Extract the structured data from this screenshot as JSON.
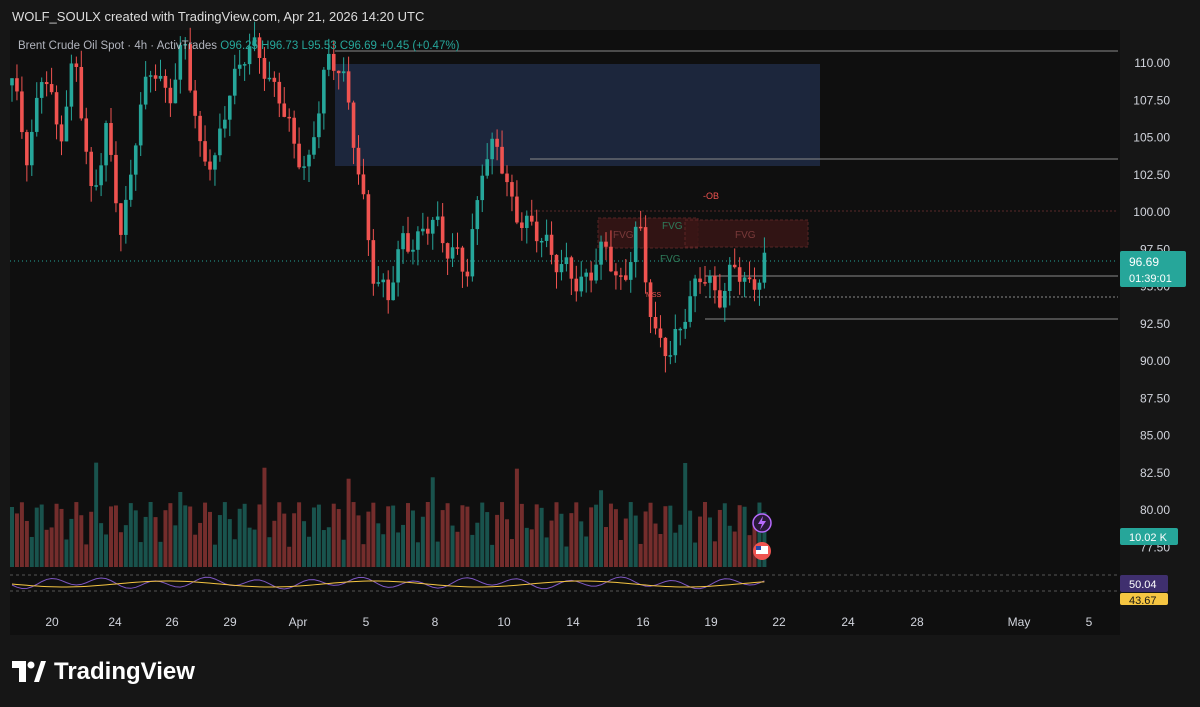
{
  "header": {
    "attribution": "WOLF_SOULX created with TradingView.com, Apr 21, 2026 14:20 UTC"
  },
  "legend": {
    "symbol": "Brent Crude Oil Spot · 4h · ActivTrades",
    "open": "O96.25",
    "high": "H96.73",
    "low": "L95.53",
    "close": "C96.69",
    "change": "+0.45 (+0.47%)"
  },
  "price_axis": {
    "last_price": "96.69",
    "countdown": "01:39:01",
    "volume_label": "10.02 K",
    "osc_value_1": "50.04",
    "osc_value_2": "43.67"
  },
  "annotations": {
    "fvg_1": "FVG",
    "fvg_2": "FVG",
    "fvg_3": "FVG",
    "fvg_4": "FVG",
    "ob": "-OB",
    "mss": "MSS"
  },
  "brand": {
    "name": "TradingView"
  },
  "colors": {
    "up": "#26a69a",
    "down": "#ef5350",
    "zone": "#1e2a44",
    "osc": "#7e57c2",
    "osc_signal": "#f5c542"
  },
  "chart_data": {
    "type": "candlestick",
    "symbol": "Brent Crude Oil Spot",
    "timeframe": "4h",
    "ylim": [
      76.5,
      111.5
    ],
    "y_ticks": [
      77.5,
      80.0,
      82.5,
      85.0,
      87.5,
      90.0,
      92.5,
      95.0,
      97.5,
      100.0,
      102.5,
      105.0,
      107.5,
      110.0
    ],
    "y_tick_labels": [
      "77.50",
      "80.00",
      "82.50",
      "85.00",
      "87.50",
      "90.00",
      "92.50",
      "95.00",
      "97.50",
      "100.00",
      "102.50",
      "105.00",
      "107.50",
      "110.00"
    ],
    "x_labels": [
      "20",
      "24",
      "26",
      "29",
      "Apr",
      "5",
      "8",
      "10",
      "14",
      "16",
      "19",
      "22",
      "24",
      "28",
      "May",
      "5"
    ],
    "close_path": [
      [
        0,
        108.5
      ],
      [
        8,
        104.0
      ],
      [
        16,
        109.5
      ],
      [
        24,
        105.0
      ],
      [
        32,
        110.5
      ],
      [
        40,
        101.0
      ],
      [
        48,
        105.5
      ],
      [
        56,
        98.0
      ],
      [
        64,
        106.5
      ],
      [
        72,
        109.5
      ],
      [
        80,
        108.0
      ],
      [
        88,
        111.0
      ],
      [
        96,
        104.5
      ],
      [
        104,
        103.0
      ],
      [
        112,
        109.0
      ],
      [
        120,
        111.0
      ],
      [
        128,
        110.0
      ],
      [
        136,
        108.0
      ],
      [
        144,
        104.0
      ],
      [
        152,
        103.5
      ],
      [
        160,
        109.5
      ],
      [
        168,
        110.5
      ],
      [
        176,
        103.0
      ],
      [
        184,
        96.5
      ],
      [
        192,
        94.0
      ],
      [
        200,
        98.5
      ],
      [
        208,
        98.0
      ],
      [
        216,
        99.5
      ],
      [
        224,
        97.5
      ],
      [
        232,
        95.5
      ],
      [
        240,
        103.5
      ],
      [
        248,
        104.0
      ],
      [
        256,
        100.5
      ],
      [
        264,
        98.5
      ],
      [
        272,
        98.5
      ],
      [
        280,
        96.0
      ],
      [
        288,
        95.5
      ],
      [
        296,
        96.0
      ],
      [
        304,
        97.5
      ],
      [
        312,
        95.0
      ],
      [
        320,
        99.0
      ],
      [
        328,
        92.0
      ],
      [
        336,
        90.0
      ],
      [
        344,
        94.0
      ],
      [
        352,
        95.5
      ],
      [
        360,
        94.5
      ],
      [
        368,
        96.0
      ],
      [
        376,
        95.0
      ],
      [
        384,
        96.69
      ]
    ],
    "volume_range": [
      0,
      10.02
    ],
    "oscillator": {
      "value_1": 50.04,
      "value_2": 43.67
    }
  }
}
